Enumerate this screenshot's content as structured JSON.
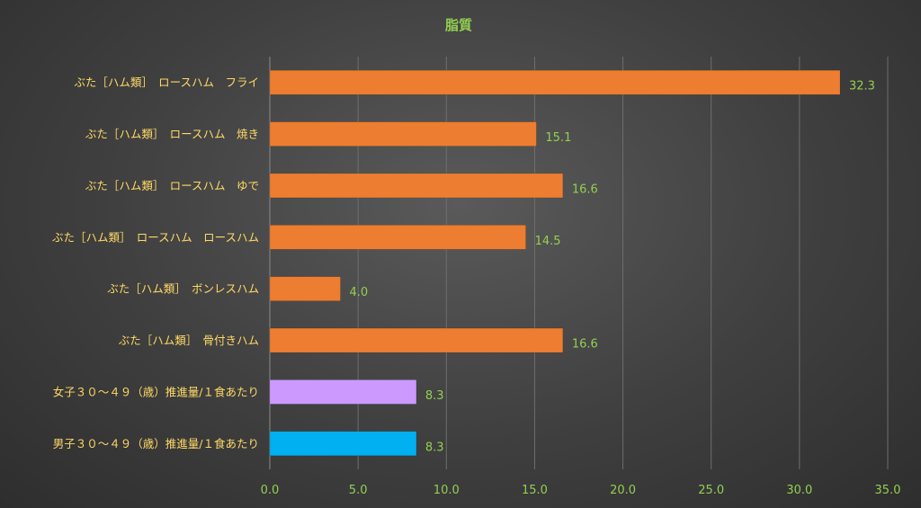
{
  "chart_data": {
    "type": "bar",
    "orientation": "horizontal",
    "title": "脂質",
    "categories": [
      "ぶた［ハム類］　ロースハム　フライ",
      "ぶた［ハム類］　ロースハム　焼き",
      "ぶた［ハム類］　ロースハム　ゆで",
      "ぶた［ハム類］　ロースハム　ロースハム",
      "ぶた［ハム類］　ボンレスハム",
      "ぶた［ハム類］　骨付きハム",
      "女子３０～４９（歳）推進量/１食あたり",
      "男子３０～４９（歳）推進量/１食あたり"
    ],
    "values": [
      32.3,
      15.1,
      16.6,
      14.5,
      4.0,
      16.6,
      8.3,
      8.3
    ],
    "value_labels": [
      "32.3",
      "15.1",
      "16.6",
      "14.5",
      "4.0",
      "16.6",
      "8.3",
      "8.3"
    ],
    "bar_colors": [
      "#ed7d31",
      "#ed7d31",
      "#ed7d31",
      "#ed7d31",
      "#ed7d31",
      "#ed7d31",
      "#cc99ff",
      "#00b0f0"
    ],
    "xlim": [
      0,
      35
    ],
    "x_ticks": [
      "0.0",
      "5.0",
      "10.0",
      "15.0",
      "20.0",
      "25.0",
      "30.0",
      "35.0"
    ],
    "grid": true,
    "legend": "none",
    "colors": {
      "title": "#92d050",
      "category_label": "#ffd966",
      "tick_label": "#92d050",
      "data_label": "#92d050",
      "gridline": "#6e6e6e"
    }
  }
}
